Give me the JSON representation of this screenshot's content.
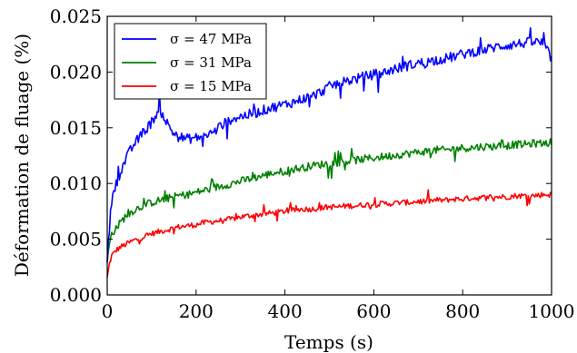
{
  "chart_data": {
    "type": "line",
    "xlabel": "Temps (s)",
    "ylabel": "Déformation de fluage (%)",
    "xlim": [
      0,
      1000
    ],
    "ylim": [
      0,
      0.025
    ],
    "xticks": [
      0,
      200,
      400,
      600,
      800,
      1000
    ],
    "xtick_labels": [
      "0",
      "200",
      "400",
      "600",
      "800",
      "1000"
    ],
    "yticks": [
      0,
      0.005,
      0.01,
      0.015,
      0.02,
      0.025
    ],
    "ytick_labels": [
      "0.000",
      "0.005",
      "0.010",
      "0.015",
      "0.020",
      "0.025"
    ],
    "grid": false,
    "legend_position": "top-left",
    "series": [
      {
        "name": "σ = 47 MPa",
        "color": "#0000ff",
        "x": [
          0,
          5,
          10,
          15,
          20,
          30,
          40,
          50,
          60,
          70,
          80,
          90,
          100,
          110,
          120,
          130,
          140,
          150,
          160,
          180,
          200,
          220,
          240,
          250,
          260,
          270,
          280,
          300,
          320,
          340,
          360,
          380,
          400,
          420,
          440,
          460,
          480,
          500,
          520,
          540,
          560,
          580,
          600,
          620,
          640,
          660,
          680,
          700,
          720,
          740,
          760,
          780,
          800,
          820,
          840,
          860,
          880,
          900,
          920,
          940,
          960,
          980,
          1000
        ],
        "y": [
          0.003,
          0.006,
          0.0085,
          0.0095,
          0.01,
          0.011,
          0.012,
          0.0128,
          0.0135,
          0.014,
          0.0145,
          0.015,
          0.0155,
          0.0162,
          0.0165,
          0.0158,
          0.015,
          0.0145,
          0.0142,
          0.014,
          0.0141,
          0.0143,
          0.0146,
          0.015,
          0.0153,
          0.0155,
          0.0158,
          0.016,
          0.0162,
          0.0164,
          0.0167,
          0.0169,
          0.0171,
          0.0173,
          0.0176,
          0.0178,
          0.0182,
          0.0187,
          0.019,
          0.0192,
          0.0194,
          0.0196,
          0.0198,
          0.0199,
          0.0202,
          0.0204,
          0.0206,
          0.0208,
          0.0209,
          0.0211,
          0.0212,
          0.0214,
          0.0216,
          0.0218,
          0.0219,
          0.0221,
          0.0223,
          0.0224,
          0.0225,
          0.0226,
          0.0227,
          0.0226,
          0.0212
        ]
      },
      {
        "name": "σ = 31 MPa",
        "color": "#008000",
        "x": [
          0,
          5,
          10,
          20,
          30,
          40,
          50,
          60,
          70,
          80,
          100,
          120,
          140,
          160,
          180,
          200,
          220,
          240,
          260,
          280,
          300,
          320,
          340,
          360,
          380,
          400,
          420,
          440,
          460,
          480,
          500,
          520,
          540,
          560,
          580,
          600,
          620,
          640,
          660,
          680,
          700,
          720,
          740,
          760,
          780,
          800,
          820,
          840,
          860,
          880,
          900,
          920,
          940,
          960,
          980,
          1000
        ],
        "y": [
          0.003,
          0.0045,
          0.0055,
          0.006,
          0.0065,
          0.007,
          0.0073,
          0.0076,
          0.0078,
          0.008,
          0.0083,
          0.0085,
          0.0087,
          0.0089,
          0.009,
          0.0092,
          0.0094,
          0.0096,
          0.0098,
          0.01,
          0.0102,
          0.0104,
          0.0106,
          0.0108,
          0.011,
          0.0111,
          0.0113,
          0.0114,
          0.0116,
          0.0117,
          0.0118,
          0.0119,
          0.012,
          0.0121,
          0.0122,
          0.0123,
          0.0124,
          0.0125,
          0.0126,
          0.0127,
          0.0128,
          0.0129,
          0.013,
          0.013,
          0.0131,
          0.0132,
          0.0132,
          0.0133,
          0.0133,
          0.0134,
          0.0134,
          0.0135,
          0.0135,
          0.0136,
          0.0136,
          0.0137
        ]
      },
      {
        "name": "σ = 15 MPa",
        "color": "#ff0000",
        "x": [
          0,
          5,
          10,
          20,
          30,
          40,
          50,
          60,
          70,
          80,
          100,
          120,
          140,
          160,
          180,
          200,
          220,
          240,
          260,
          280,
          300,
          320,
          340,
          360,
          380,
          400,
          420,
          440,
          460,
          480,
          500,
          520,
          540,
          560,
          580,
          600,
          620,
          640,
          660,
          680,
          700,
          720,
          740,
          760,
          780,
          800,
          820,
          840,
          860,
          880,
          900,
          920,
          940,
          960,
          980,
          1000
        ],
        "y": [
          0.0015,
          0.0028,
          0.0035,
          0.004,
          0.0043,
          0.0045,
          0.0047,
          0.0049,
          0.005,
          0.0052,
          0.0055,
          0.0057,
          0.0059,
          0.0061,
          0.0062,
          0.0063,
          0.0065,
          0.0066,
          0.0067,
          0.0068,
          0.007,
          0.0071,
          0.0072,
          0.0073,
          0.0074,
          0.0075,
          0.0076,
          0.0077,
          0.0077,
          0.0078,
          0.0079,
          0.0079,
          0.008,
          0.008,
          0.0081,
          0.0081,
          0.0082,
          0.0082,
          0.0083,
          0.0083,
          0.0084,
          0.0084,
          0.0085,
          0.0085,
          0.0086,
          0.0086,
          0.0087,
          0.0087,
          0.0088,
          0.0088,
          0.0088,
          0.0089,
          0.0089,
          0.0089,
          0.009,
          0.009
        ]
      }
    ],
    "noise": [
      0.0009,
      0.0007,
      0.0005
    ]
  }
}
